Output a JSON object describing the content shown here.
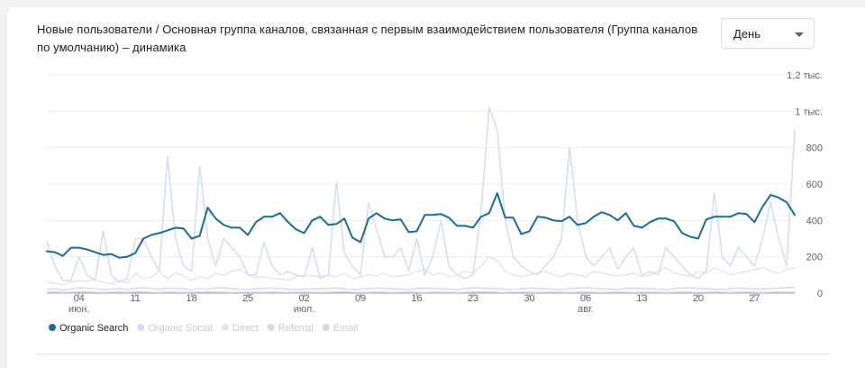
{
  "card": {
    "title": "Новые пользователи / Основная группа каналов, связанная с первым взаимодействием пользователя (Группа каналов по умолчанию) – динамика",
    "granularity": "День"
  },
  "chart_data": {
    "type": "line",
    "title": "Новые пользователи / Основная группа каналов, связанная с первым взаимодействием пользователя (Группа каналов по умолчанию) – динамика",
    "ylim": [
      0,
      1200
    ],
    "y_ticks": [
      {
        "value": 0,
        "label": "0"
      },
      {
        "value": 200,
        "label": "200"
      },
      {
        "value": 400,
        "label": "400"
      },
      {
        "value": 600,
        "label": "600"
      },
      {
        "value": 800,
        "label": "800"
      },
      {
        "value": 1000,
        "label": "1 тыс."
      },
      {
        "value": 1200,
        "label": "1,2 тыс."
      }
    ],
    "x_ticks": [
      {
        "index": 4,
        "label": "04",
        "sub": "июн."
      },
      {
        "index": 11,
        "label": "11",
        "sub": ""
      },
      {
        "index": 18,
        "label": "18",
        "sub": ""
      },
      {
        "index": 25,
        "label": "25",
        "sub": ""
      },
      {
        "index": 32,
        "label": "02",
        "sub": "июл."
      },
      {
        "index": 39,
        "label": "09",
        "sub": ""
      },
      {
        "index": 46,
        "label": "16",
        "sub": ""
      },
      {
        "index": 53,
        "label": "23",
        "sub": ""
      },
      {
        "index": 60,
        "label": "30",
        "sub": ""
      },
      {
        "index": 67,
        "label": "06",
        "sub": "авг."
      },
      {
        "index": 74,
        "label": "13",
        "sub": ""
      },
      {
        "index": 81,
        "label": "20",
        "sub": ""
      },
      {
        "index": 88,
        "label": "27",
        "sub": ""
      }
    ],
    "grid": true,
    "legend_position": "bottom-left",
    "series": [
      {
        "name": "Organic Search",
        "color": "#1a6b9e",
        "values": [
          230,
          225,
          205,
          250,
          250,
          240,
          225,
          210,
          215,
          195,
          200,
          220,
          300,
          320,
          330,
          345,
          360,
          355,
          300,
          315,
          470,
          410,
          375,
          360,
          360,
          320,
          390,
          420,
          420,
          440,
          390,
          350,
          330,
          400,
          420,
          375,
          380,
          410,
          305,
          280,
          410,
          440,
          410,
          400,
          405,
          335,
          340,
          430,
          430,
          435,
          415,
          370,
          370,
          360,
          420,
          440,
          550,
          415,
          415,
          325,
          340,
          420,
          415,
          400,
          395,
          420,
          375,
          385,
          420,
          445,
          430,
          400,
          440,
          370,
          360,
          390,
          410,
          410,
          395,
          330,
          310,
          300,
          405,
          420,
          420,
          420,
          440,
          435,
          390,
          475,
          540,
          525,
          500,
          430
        ]
      },
      {
        "name": "Organic Social",
        "color": "#d4def5",
        "values": [
          280,
          150,
          70,
          70,
          200,
          100,
          70,
          340,
          100,
          60,
          80,
          300,
          300,
          200,
          120,
          750,
          300,
          150,
          120,
          700,
          300,
          150,
          300,
          250,
          200,
          100,
          100,
          280,
          150,
          100,
          120,
          100,
          90,
          250,
          80,
          100,
          610,
          220,
          150,
          100,
          500,
          350,
          200,
          200,
          250,
          120,
          300,
          100,
          200,
          400,
          150,
          100,
          80,
          100,
          450,
          1020,
          900,
          400,
          200,
          150,
          120,
          100,
          150,
          200,
          300,
          800,
          400,
          200,
          150,
          200,
          250,
          130,
          200,
          250,
          100,
          120,
          100,
          250,
          200,
          150,
          100,
          80,
          120,
          550,
          200,
          150,
          250,
          200,
          150,
          300,
          500,
          300,
          150,
          900
        ]
      },
      {
        "name": "Direct",
        "color": "#e6e4f9",
        "values": [
          60,
          55,
          45,
          60,
          70,
          65,
          75,
          60,
          50,
          70,
          55,
          110,
          80,
          90,
          120,
          80,
          110,
          95,
          70,
          90,
          80,
          110,
          100,
          120,
          130,
          100,
          85,
          90,
          80,
          80,
          70,
          90,
          100,
          95,
          90,
          100,
          90,
          110,
          80,
          90,
          100,
          95,
          110,
          90,
          95,
          100,
          120,
          130,
          100,
          110,
          90,
          100,
          120,
          110,
          150,
          200,
          180,
          120,
          100,
          90,
          100,
          110,
          120,
          100,
          90,
          110,
          100,
          90,
          120,
          110,
          100,
          95,
          100,
          110,
          90,
          100,
          120,
          140,
          110,
          100,
          90,
          120,
          110,
          140,
          120,
          100,
          110,
          120,
          130,
          140,
          120,
          110,
          130,
          140
        ]
      },
      {
        "name": "Referral",
        "color": "#dcd6f7",
        "values": [
          20,
          25,
          18,
          22,
          30,
          28,
          25,
          20,
          22,
          25,
          20,
          28,
          30,
          25,
          22,
          28,
          26,
          24,
          20,
          25,
          22,
          28,
          30,
          25,
          22,
          20,
          24,
          26,
          28,
          25,
          22,
          20,
          22,
          25,
          24,
          26,
          28,
          24,
          20,
          22,
          25,
          28,
          26,
          24,
          22,
          20,
          25,
          28,
          26,
          24,
          22,
          20,
          25,
          30,
          28,
          26,
          24,
          22,
          20,
          25,
          28,
          26,
          24,
          22,
          20,
          25,
          28,
          30,
          26,
          24,
          22,
          20,
          25,
          28,
          26,
          24,
          22,
          20,
          25,
          28,
          30,
          26,
          24,
          22,
          20,
          25,
          28,
          26,
          24,
          22,
          25,
          28,
          30,
          32
        ]
      },
      {
        "name": "Email",
        "color": "#d9d3ec",
        "values": [
          5,
          6,
          4,
          5,
          7,
          6,
          5,
          4,
          5,
          6,
          5,
          7,
          6,
          5,
          4,
          6,
          5,
          4,
          5,
          6,
          7,
          6,
          5,
          4,
          5,
          6,
          5,
          4,
          6,
          5,
          4,
          5,
          6,
          5,
          4,
          5,
          6,
          7,
          5,
          4,
          5,
          6,
          5,
          4,
          5,
          6,
          5,
          4,
          5,
          6,
          5,
          4,
          5,
          6,
          7,
          6,
          5,
          4,
          5,
          6,
          5,
          4,
          5,
          6,
          5,
          4,
          5,
          6,
          5,
          4,
          5,
          6,
          5,
          4,
          5,
          6,
          5,
          4,
          5,
          6,
          5,
          4,
          5,
          6,
          5,
          4,
          5,
          6,
          5,
          4,
          5,
          6,
          5,
          6
        ]
      }
    ]
  }
}
